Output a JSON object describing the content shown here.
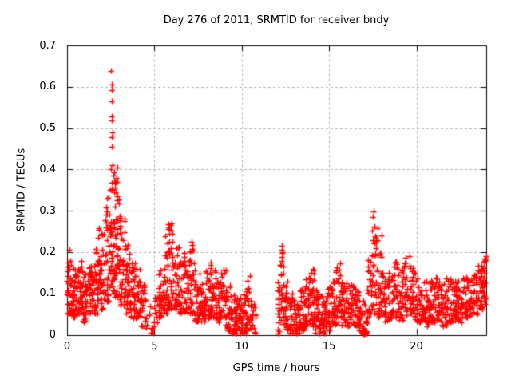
{
  "chart_data": {
    "type": "scatter",
    "title": "Day 276 of 2011, SRMTID for receiver bndy",
    "xlabel": "GPS time / hours",
    "ylabel": "SRMTID / TECUs",
    "xlim": [
      0,
      24
    ],
    "ylim": [
      0,
      0.7
    ],
    "xticks": [
      0,
      5,
      10,
      15,
      20
    ],
    "xtick_labels": [
      "0",
      "5",
      "10",
      "15",
      "20"
    ],
    "yticks": [
      0,
      0.1,
      0.2,
      0.3,
      0.4,
      0.5,
      0.6,
      0.7
    ],
    "ytick_labels": [
      "0",
      "0.1",
      "0.2",
      "0.3",
      "0.4",
      "0.5",
      "0.6",
      "0.7"
    ],
    "grid": "dashed-both-axes",
    "legend": "none",
    "marker": {
      "symbol": "plus",
      "color": "#ff0000",
      "size": 7
    },
    "axis_color": "#000000",
    "grid_color": "#b3b3b3",
    "background": "#ffffff",
    "seed": 42,
    "note": "Dense GPS scatter (~30 s epochs, multiple satellites). Envelope segments give [xStartHr, xEndHr, nPoints, yMin, yMax, lowSkewExponent]; data gap 10.8-12.05 h; near-zero run at 16.9-17.15 h.",
    "envelope_segments": [
      [
        0.0,
        0.3,
        36,
        0.05,
        0.2,
        1.5
      ],
      [
        0.3,
        0.6,
        36,
        0.04,
        0.16,
        1.4
      ],
      [
        0.6,
        0.9,
        36,
        0.05,
        0.18,
        1.4
      ],
      [
        0.9,
        1.2,
        36,
        0.03,
        0.15,
        1.4
      ],
      [
        1.2,
        1.5,
        36,
        0.05,
        0.17,
        1.4
      ],
      [
        1.5,
        1.8,
        36,
        0.05,
        0.22,
        1.5
      ],
      [
        1.8,
        2.1,
        38,
        0.06,
        0.26,
        1.5
      ],
      [
        2.1,
        2.4,
        42,
        0.08,
        0.34,
        1.6
      ],
      [
        2.4,
        2.7,
        46,
        0.1,
        0.42,
        1.5
      ],
      [
        2.7,
        3.0,
        44,
        0.09,
        0.38,
        1.6
      ],
      [
        3.0,
        3.3,
        40,
        0.07,
        0.3,
        1.6
      ],
      [
        3.3,
        3.6,
        36,
        0.05,
        0.22,
        1.5
      ],
      [
        3.6,
        3.9,
        32,
        0.04,
        0.18,
        1.4
      ],
      [
        3.9,
        4.2,
        30,
        0.04,
        0.16,
        1.4
      ],
      [
        4.2,
        4.5,
        22,
        0.02,
        0.12,
        1.4
      ],
      [
        4.5,
        4.75,
        7,
        0.01,
        0.07,
        1.3
      ],
      [
        4.75,
        4.95,
        6,
        0.001,
        0.02,
        1.2
      ],
      [
        4.95,
        5.2,
        14,
        0.02,
        0.1,
        1.3
      ],
      [
        5.2,
        5.5,
        26,
        0.04,
        0.16,
        1.4
      ],
      [
        5.5,
        5.8,
        30,
        0.05,
        0.24,
        1.5
      ],
      [
        5.8,
        6.1,
        34,
        0.06,
        0.27,
        1.5
      ],
      [
        6.1,
        6.4,
        32,
        0.06,
        0.22,
        1.5
      ],
      [
        6.4,
        6.7,
        30,
        0.05,
        0.18,
        1.4
      ],
      [
        6.7,
        7.0,
        30,
        0.05,
        0.2,
        1.4
      ],
      [
        7.0,
        7.3,
        30,
        0.05,
        0.22,
        1.5
      ],
      [
        7.3,
        7.6,
        28,
        0.03,
        0.15,
        1.4
      ],
      [
        7.6,
        7.9,
        28,
        0.03,
        0.13,
        1.4
      ],
      [
        7.9,
        8.2,
        30,
        0.04,
        0.16,
        1.4
      ],
      [
        8.2,
        8.5,
        30,
        0.04,
        0.18,
        1.4
      ],
      [
        8.5,
        8.8,
        28,
        0.03,
        0.14,
        1.4
      ],
      [
        8.8,
        9.1,
        28,
        0.04,
        0.16,
        1.4
      ],
      [
        9.1,
        9.4,
        30,
        0.01,
        0.12,
        1.4
      ],
      [
        9.4,
        9.7,
        32,
        0.002,
        0.1,
        1.5
      ],
      [
        9.7,
        10.0,
        32,
        0.002,
        0.09,
        1.5
      ],
      [
        10.0,
        10.3,
        30,
        0.002,
        0.1,
        1.5
      ],
      [
        10.3,
        10.6,
        24,
        0.01,
        0.14,
        1.4
      ],
      [
        10.6,
        10.8,
        12,
        0.002,
        0.08,
        1.4
      ],
      [
        12.05,
        12.2,
        16,
        0.002,
        0.13,
        1.3
      ],
      [
        12.2,
        12.45,
        26,
        0.02,
        0.21,
        1.2
      ],
      [
        12.45,
        12.7,
        24,
        0.01,
        0.13,
        1.3
      ],
      [
        12.7,
        13.0,
        30,
        0.002,
        0.1,
        1.4
      ],
      [
        13.0,
        13.3,
        30,
        0.002,
        0.09,
        1.4
      ],
      [
        13.3,
        13.6,
        30,
        0.01,
        0.11,
        1.4
      ],
      [
        13.6,
        13.9,
        30,
        0.02,
        0.14,
        1.4
      ],
      [
        13.9,
        14.2,
        30,
        0.02,
        0.16,
        1.4
      ],
      [
        14.2,
        14.5,
        30,
        0.002,
        0.11,
        1.4
      ],
      [
        14.5,
        14.8,
        30,
        0.002,
        0.1,
        1.4
      ],
      [
        14.8,
        15.1,
        30,
        0.01,
        0.12,
        1.4
      ],
      [
        15.1,
        15.4,
        28,
        0.02,
        0.14,
        1.4
      ],
      [
        15.4,
        15.7,
        28,
        0.03,
        0.17,
        1.4
      ],
      [
        15.7,
        16.0,
        28,
        0.02,
        0.14,
        1.4
      ],
      [
        16.0,
        16.3,
        28,
        0.02,
        0.13,
        1.4
      ],
      [
        16.3,
        16.6,
        28,
        0.02,
        0.12,
        1.4
      ],
      [
        16.6,
        16.9,
        26,
        0.01,
        0.11,
        1.4
      ],
      [
        16.9,
        17.15,
        22,
        0.001,
        0.01,
        1.0
      ],
      [
        16.9,
        17.2,
        16,
        0.01,
        0.09,
        1.3
      ],
      [
        17.2,
        17.5,
        28,
        0.04,
        0.2,
        1.4
      ],
      [
        17.5,
        17.8,
        30,
        0.05,
        0.26,
        1.4
      ],
      [
        17.8,
        18.1,
        28,
        0.04,
        0.22,
        1.5
      ],
      [
        18.1,
        18.4,
        26,
        0.03,
        0.14,
        1.4
      ],
      [
        18.4,
        18.7,
        26,
        0.03,
        0.15,
        1.4
      ],
      [
        18.7,
        19.0,
        26,
        0.04,
        0.18,
        1.4
      ],
      [
        19.0,
        19.3,
        26,
        0.03,
        0.16,
        1.4
      ],
      [
        19.3,
        19.6,
        26,
        0.04,
        0.19,
        1.4
      ],
      [
        19.6,
        19.9,
        26,
        0.04,
        0.17,
        1.4
      ],
      [
        19.9,
        20.2,
        26,
        0.03,
        0.15,
        1.4
      ],
      [
        20.2,
        20.5,
        26,
        0.03,
        0.14,
        1.4
      ],
      [
        20.5,
        20.8,
        26,
        0.02,
        0.13,
        1.4
      ],
      [
        20.8,
        21.1,
        26,
        0.03,
        0.15,
        1.4
      ],
      [
        21.1,
        21.4,
        26,
        0.03,
        0.14,
        1.4
      ],
      [
        21.4,
        21.7,
        26,
        0.02,
        0.13,
        1.4
      ],
      [
        21.7,
        22.0,
        26,
        0.03,
        0.14,
        1.4
      ],
      [
        22.0,
        22.3,
        26,
        0.03,
        0.15,
        1.4
      ],
      [
        22.3,
        22.6,
        26,
        0.03,
        0.13,
        1.4
      ],
      [
        22.6,
        22.9,
        26,
        0.04,
        0.14,
        1.4
      ],
      [
        22.9,
        23.2,
        26,
        0.04,
        0.15,
        1.4
      ],
      [
        23.2,
        23.5,
        28,
        0.05,
        0.16,
        1.3
      ],
      [
        23.5,
        23.8,
        30,
        0.06,
        0.17,
        1.2
      ],
      [
        23.8,
        24.0,
        24,
        0.07,
        0.19,
        1.2
      ]
    ],
    "outliers": [
      [
        0.15,
        0.205
      ],
      [
        2.52,
        0.638
      ],
      [
        2.55,
        0.605
      ],
      [
        2.56,
        0.592
      ],
      [
        2.54,
        0.565
      ],
      [
        2.58,
        0.528
      ],
      [
        2.56,
        0.518
      ],
      [
        2.6,
        0.49
      ],
      [
        2.55,
        0.478
      ],
      [
        2.57,
        0.455
      ],
      [
        2.62,
        0.41
      ],
      [
        2.5,
        0.4
      ],
      [
        2.9,
        0.405
      ],
      [
        2.66,
        0.385
      ],
      [
        2.75,
        0.37
      ],
      [
        2.45,
        0.35
      ],
      [
        2.68,
        0.345
      ],
      [
        5.8,
        0.255
      ],
      [
        5.92,
        0.265
      ],
      [
        6.05,
        0.245
      ],
      [
        5.86,
        0.225
      ],
      [
        7.15,
        0.225
      ],
      [
        10.45,
        0.142
      ],
      [
        12.3,
        0.215
      ],
      [
        12.33,
        0.198
      ],
      [
        12.28,
        0.188
      ],
      [
        15.62,
        0.172
      ],
      [
        17.55,
        0.298
      ],
      [
        17.5,
        0.285
      ],
      [
        17.62,
        0.262
      ],
      [
        17.45,
        0.252
      ],
      [
        17.7,
        0.235
      ],
      [
        17.58,
        0.222
      ],
      [
        18.0,
        0.24
      ],
      [
        23.9,
        0.185
      ],
      [
        23.95,
        0.178
      ]
    ]
  }
}
